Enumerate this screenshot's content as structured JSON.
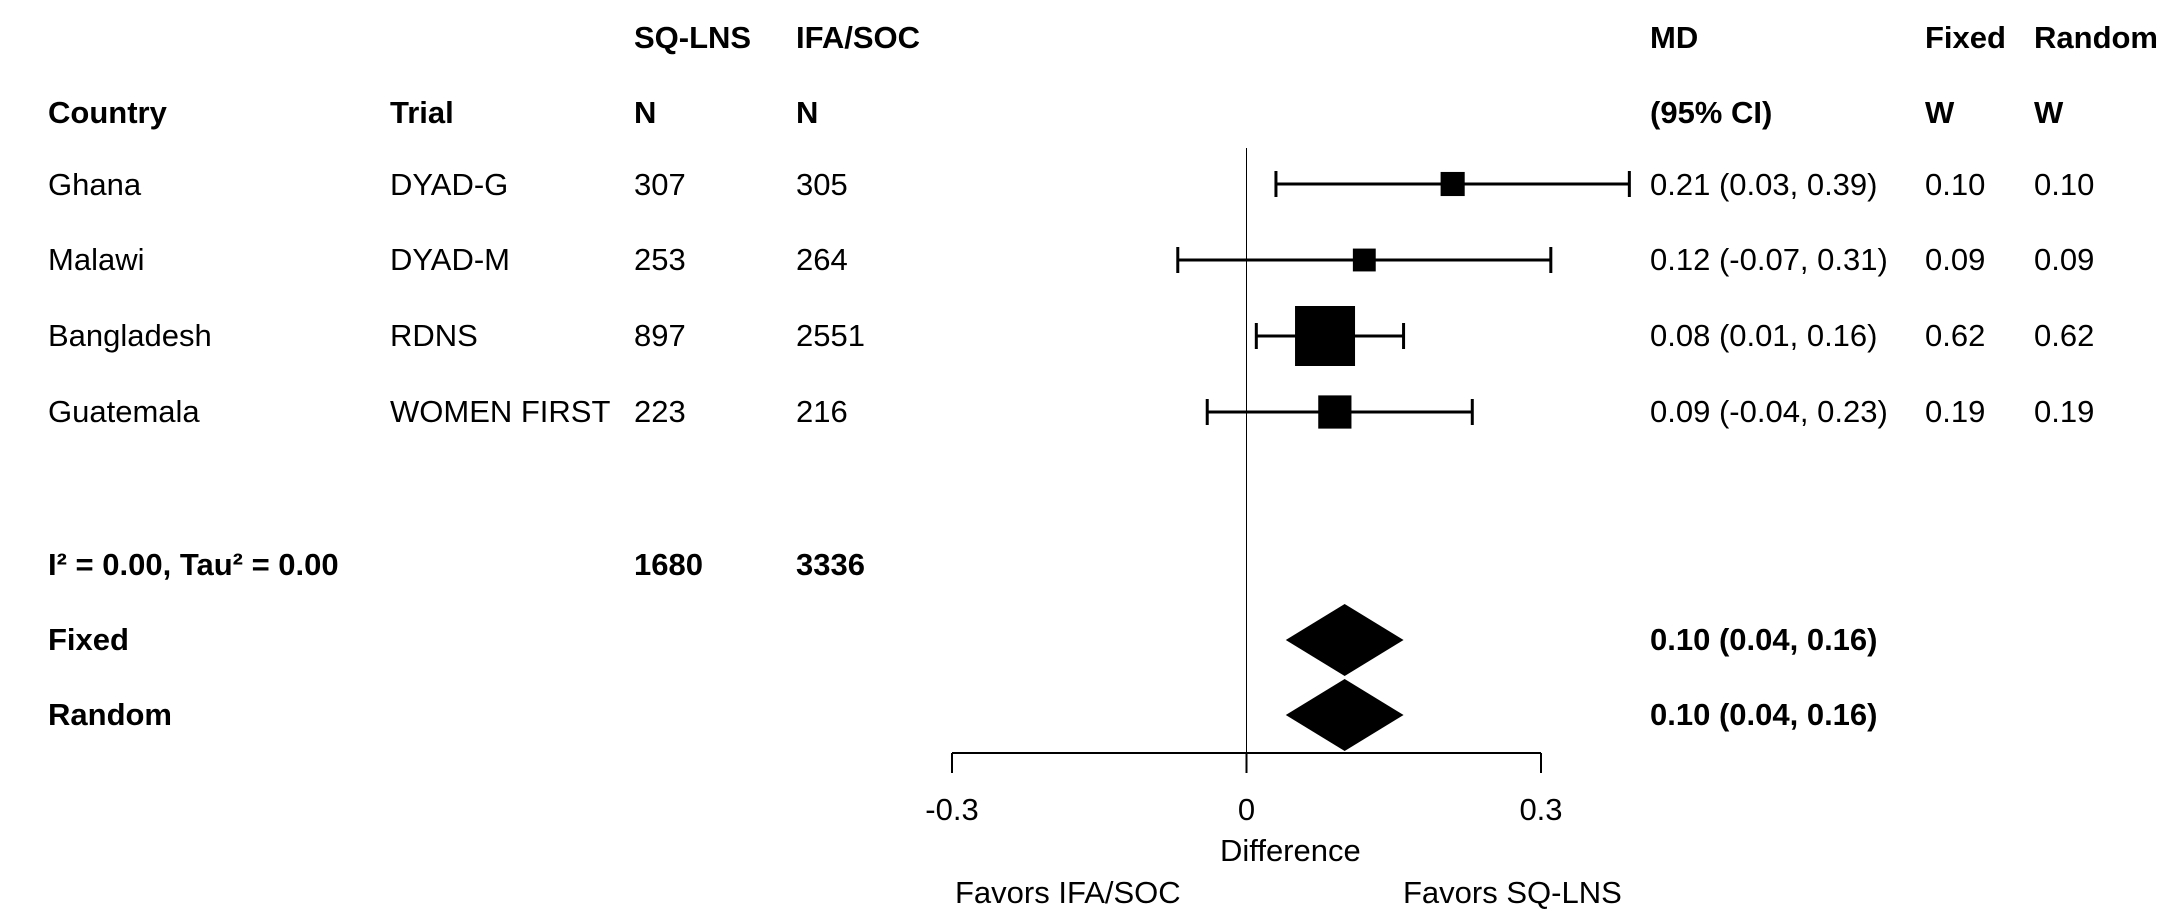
{
  "headers": {
    "group_row": {
      "sqlns": "SQ-LNS",
      "ifasoc": "IFA/SOC",
      "md": "MD",
      "fixed": "Fixed",
      "random": "Random"
    },
    "col_row": {
      "country": "Country",
      "trial": "Trial",
      "n1": "N",
      "n2": "N",
      "ci": "(95% CI)",
      "w_fixed": "W",
      "w_random": "W"
    }
  },
  "studies": [
    {
      "country": "Ghana",
      "trial": "DYAD-G",
      "n1": "307",
      "n2": "305",
      "md_text": "0.21 (0.03, 0.39)",
      "w_fixed": "0.10",
      "w_random": "0.10"
    },
    {
      "country": "Malawi",
      "trial": "DYAD-M",
      "n1": "253",
      "n2": "264",
      "md_text": "0.12 (-0.07, 0.31)",
      "w_fixed": "0.09",
      "w_random": "0.09"
    },
    {
      "country": "Bangladesh",
      "trial": "RDNS",
      "n1": "897",
      "n2": "2551",
      "md_text": "0.08 (0.01, 0.16)",
      "w_fixed": "0.62",
      "w_random": "0.62"
    },
    {
      "country": "Guatemala",
      "trial": "WOMEN FIRST",
      "n1": "223",
      "n2": "216",
      "md_text": "0.09 (-0.04, 0.23)",
      "w_fixed": "0.19",
      "w_random": "0.19"
    }
  ],
  "heterogeneity": {
    "label": "I² = 0.00, Tau² = 0.00",
    "n1_total": "1680",
    "n2_total": "3336"
  },
  "pooled": [
    {
      "label": "Fixed",
      "md_text": "0.10 (0.04, 0.16)"
    },
    {
      "label": "Random",
      "md_text": "0.10 (0.04, 0.16)"
    }
  ],
  "axis": {
    "xlabel": "Difference",
    "favors_left": "Favors IFA/SOC",
    "favors_right": "Favors SQ-LNS"
  },
  "chart_data": {
    "type": "forest",
    "xlim": [
      -0.3,
      0.3
    ],
    "ticks": [
      -0.3,
      0,
      0.3
    ],
    "tick_labels": [
      "-0.3",
      "0",
      "0.3"
    ],
    "reference_line": 0,
    "studies": [
      {
        "label": "Ghana",
        "md": 0.21,
        "lower": 0.03,
        "upper": 0.39,
        "weight": 0.1
      },
      {
        "label": "Malawi",
        "md": 0.12,
        "lower": -0.07,
        "upper": 0.31,
        "weight": 0.09
      },
      {
        "label": "Bangladesh",
        "md": 0.08,
        "lower": 0.01,
        "upper": 0.16,
        "weight": 0.62
      },
      {
        "label": "Guatemala",
        "md": 0.09,
        "lower": -0.04,
        "upper": 0.23,
        "weight": 0.19
      }
    ],
    "pooled": [
      {
        "label": "Fixed",
        "md": 0.1,
        "lower": 0.04,
        "upper": 0.16
      },
      {
        "label": "Random",
        "md": 0.1,
        "lower": 0.04,
        "upper": 0.16
      }
    ],
    "xlabel": "Difference"
  }
}
